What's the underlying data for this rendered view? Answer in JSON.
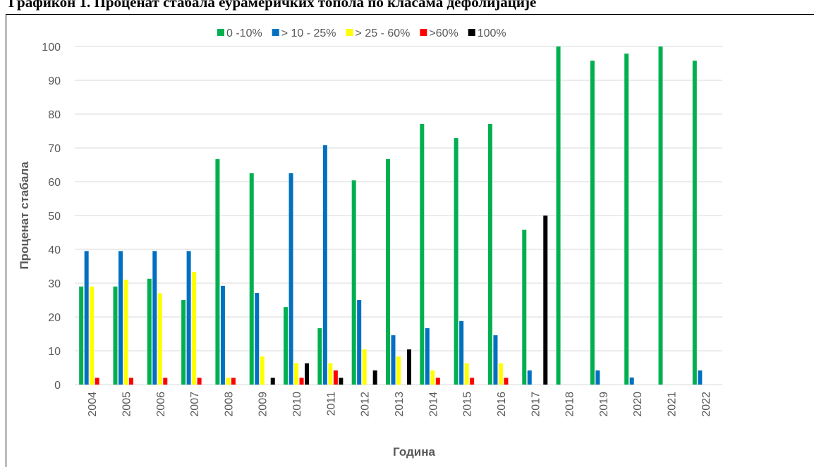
{
  "chart_data": {
    "type": "bar",
    "title": "Графикон 1. Проценат стабала еурамеричких топола по класама дефолијације",
    "x_label": "Година",
    "y_label": "Проценат стабала",
    "categories": [
      "2004",
      "2005",
      "2006",
      "2007",
      "2008",
      "2009",
      "2010",
      "2011",
      "2012",
      "2013",
      "2014",
      "2015",
      "2016",
      "2017",
      "2018",
      "2019",
      "2020",
      "2021",
      "2022"
    ],
    "series": [
      {
        "name": "0 -10%",
        "color": "#00b050",
        "values": [
          29,
          29,
          31.3,
          25,
          66.7,
          62.5,
          22.9,
          16.7,
          60.4,
          66.7,
          77.1,
          72.9,
          77.1,
          45.8,
          100,
          95.8,
          97.9,
          100,
          95.8
        ]
      },
      {
        "name": "> 10 - 25%",
        "color": "#0070c0",
        "values": [
          39.5,
          39.5,
          39.5,
          39.5,
          29.2,
          27.1,
          62.5,
          70.8,
          25,
          14.6,
          16.7,
          18.8,
          14.6,
          4.2,
          0,
          4.2,
          2.1,
          0,
          4.2
        ]
      },
      {
        "name": "> 25 - 60%",
        "color": "#ffff00",
        "values": [
          29,
          31,
          27,
          33.3,
          2,
          8.3,
          6.3,
          6.3,
          10.4,
          8.3,
          4.2,
          6.3,
          6.3,
          0,
          0,
          0,
          0,
          0,
          0
        ]
      },
      {
        "name": ">60%",
        "color": "#ff0000",
        "values": [
          2,
          2,
          2,
          2,
          2,
          0,
          2,
          4.2,
          0,
          0,
          2,
          2,
          2,
          0,
          0,
          0,
          0,
          0,
          0
        ]
      },
      {
        "name": "100%",
        "color": "#000000",
        "values": [
          0,
          0,
          0,
          0,
          0,
          2,
          6.3,
          2,
          4.2,
          10.4,
          0,
          0,
          0,
          50,
          0,
          0,
          0,
          0,
          0
        ]
      }
    ],
    "ylim": [
      0,
      100
    ],
    "yticks": [
      0,
      10,
      20,
      30,
      40,
      50,
      60,
      70,
      80,
      90,
      100
    ],
    "grid": true,
    "legend": "top"
  }
}
